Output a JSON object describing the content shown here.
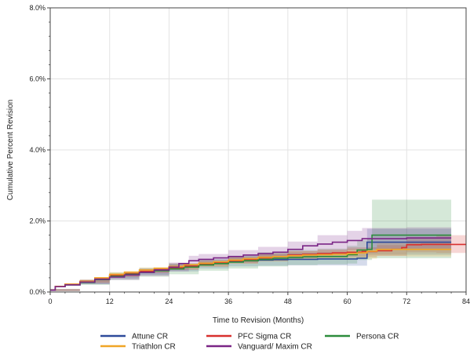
{
  "chart_data": {
    "type": "line",
    "title": "",
    "xlabel": "Time to Revision (Months)",
    "ylabel": "Cumulative Percent Revision",
    "xlim": [
      0,
      84
    ],
    "ylim": [
      0,
      8
    ],
    "x_ticks": [
      0,
      12,
      24,
      36,
      48,
      60,
      72,
      84
    ],
    "x_tick_labels": [
      "0",
      "12",
      "24",
      "36",
      "48",
      "60",
      "72",
      "84"
    ],
    "y_ticks": [
      0,
      2,
      4,
      6,
      8
    ],
    "y_tick_labels": [
      "0.0%",
      "2.0%",
      "4.0%",
      "6.0%",
      "8.0%"
    ],
    "grid": true,
    "legend_position": "bottom",
    "series": [
      {
        "name": "Attune CR",
        "color": "#2e4a9a",
        "points": [
          [
            0,
            0.05
          ],
          [
            1,
            0.15
          ],
          [
            3,
            0.2
          ],
          [
            6,
            0.28
          ],
          [
            9,
            0.36
          ],
          [
            12,
            0.45
          ],
          [
            15,
            0.5
          ],
          [
            18,
            0.56
          ],
          [
            21,
            0.62
          ],
          [
            24,
            0.68
          ],
          [
            27,
            0.73
          ],
          [
            30,
            0.78
          ],
          [
            33,
            0.82
          ],
          [
            36,
            0.86
          ],
          [
            39,
            0.88
          ],
          [
            42,
            0.9
          ],
          [
            45,
            0.91
          ],
          [
            48,
            0.92
          ],
          [
            51,
            0.92
          ],
          [
            54,
            0.93
          ],
          [
            57,
            0.93
          ],
          [
            60,
            0.93
          ],
          [
            62,
            0.95
          ],
          [
            64,
            1.4
          ],
          [
            66,
            1.4
          ],
          [
            69,
            1.4
          ],
          [
            72,
            1.4
          ],
          [
            75,
            1.4
          ],
          [
            78,
            1.4
          ],
          [
            81,
            1.4
          ]
        ],
        "band": [
          [
            0,
            0.03,
            0.08
          ],
          [
            6,
            0.22,
            0.34
          ],
          [
            12,
            0.38,
            0.52
          ],
          [
            18,
            0.48,
            0.64
          ],
          [
            24,
            0.58,
            0.8
          ],
          [
            30,
            0.66,
            0.92
          ],
          [
            36,
            0.72,
            1.02
          ],
          [
            42,
            0.74,
            1.08
          ],
          [
            48,
            0.75,
            1.1
          ],
          [
            54,
            0.75,
            1.12
          ],
          [
            60,
            0.74,
            1.14
          ],
          [
            62,
            0.74,
            1.2
          ],
          [
            64,
            1.05,
            1.78
          ],
          [
            72,
            1.05,
            1.78
          ],
          [
            81,
            1.05,
            1.78
          ]
        ]
      },
      {
        "name": "PFC Sigma CR",
        "color": "#d8302e",
        "points": [
          [
            0,
            0.05
          ],
          [
            1,
            0.15
          ],
          [
            3,
            0.22
          ],
          [
            6,
            0.3
          ],
          [
            9,
            0.38
          ],
          [
            12,
            0.47
          ],
          [
            15,
            0.52
          ],
          [
            18,
            0.58
          ],
          [
            21,
            0.63
          ],
          [
            24,
            0.68
          ],
          [
            27,
            0.73
          ],
          [
            30,
            0.78
          ],
          [
            33,
            0.83
          ],
          [
            36,
            0.88
          ],
          [
            39,
            0.92
          ],
          [
            42,
            0.96
          ],
          [
            45,
            1.0
          ],
          [
            48,
            1.04
          ],
          [
            51,
            1.06
          ],
          [
            54,
            1.08
          ],
          [
            57,
            1.1
          ],
          [
            60,
            1.12
          ],
          [
            63,
            1.14
          ],
          [
            66,
            1.16
          ],
          [
            69,
            1.2
          ],
          [
            71,
            1.25
          ],
          [
            72,
            1.33
          ],
          [
            75,
            1.34
          ],
          [
            78,
            1.34
          ],
          [
            81,
            1.34
          ],
          [
            84,
            1.34
          ]
        ],
        "band": [
          [
            0,
            0.03,
            0.08
          ],
          [
            6,
            0.26,
            0.34
          ],
          [
            12,
            0.42,
            0.52
          ],
          [
            18,
            0.53,
            0.64
          ],
          [
            24,
            0.62,
            0.75
          ],
          [
            30,
            0.71,
            0.86
          ],
          [
            36,
            0.8,
            0.97
          ],
          [
            42,
            0.87,
            1.06
          ],
          [
            48,
            0.94,
            1.15
          ],
          [
            54,
            0.97,
            1.2
          ],
          [
            60,
            0.99,
            1.26
          ],
          [
            66,
            1.01,
            1.32
          ],
          [
            72,
            1.12,
            1.55
          ],
          [
            78,
            1.1,
            1.6
          ],
          [
            84,
            1.08,
            1.62
          ]
        ]
      },
      {
        "name": "Persona CR",
        "color": "#2c8c3c",
        "points": [
          [
            0,
            0.05
          ],
          [
            1,
            0.15
          ],
          [
            3,
            0.2
          ],
          [
            6,
            0.27
          ],
          [
            9,
            0.35
          ],
          [
            12,
            0.44
          ],
          [
            15,
            0.5
          ],
          [
            18,
            0.55
          ],
          [
            21,
            0.6
          ],
          [
            24,
            0.65
          ],
          [
            27,
            0.7
          ],
          [
            30,
            0.76
          ],
          [
            33,
            0.8
          ],
          [
            36,
            0.84
          ],
          [
            39,
            0.88
          ],
          [
            42,
            0.92
          ],
          [
            45,
            0.95
          ],
          [
            48,
            0.97
          ],
          [
            51,
            0.99
          ],
          [
            54,
            1.0
          ],
          [
            57,
            1.0
          ],
          [
            60,
            1.05
          ],
          [
            62,
            1.18
          ],
          [
            64,
            1.2
          ],
          [
            65,
            1.6
          ],
          [
            69,
            1.6
          ],
          [
            72,
            1.6
          ],
          [
            75,
            1.6
          ],
          [
            78,
            1.6
          ],
          [
            81,
            1.6
          ]
        ],
        "band": [
          [
            0,
            0.03,
            0.08
          ],
          [
            6,
            0.2,
            0.34
          ],
          [
            12,
            0.34,
            0.55
          ],
          [
            18,
            0.43,
            0.68
          ],
          [
            24,
            0.5,
            0.8
          ],
          [
            30,
            0.6,
            0.92
          ],
          [
            36,
            0.66,
            1.02
          ],
          [
            42,
            0.72,
            1.12
          ],
          [
            48,
            0.76,
            1.18
          ],
          [
            54,
            0.78,
            1.22
          ],
          [
            60,
            0.8,
            1.3
          ],
          [
            62,
            0.9,
            1.46
          ],
          [
            64,
            0.9,
            1.48
          ],
          [
            65,
            0.95,
            2.6
          ],
          [
            72,
            0.95,
            2.6
          ],
          [
            81,
            0.95,
            2.6
          ]
        ]
      },
      {
        "name": "Triathlon CR",
        "color": "#f0a526",
        "points": [
          [
            0,
            0.05
          ],
          [
            1,
            0.16
          ],
          [
            3,
            0.22
          ],
          [
            6,
            0.3
          ],
          [
            9,
            0.4
          ],
          [
            12,
            0.5
          ],
          [
            15,
            0.56
          ],
          [
            18,
            0.62
          ],
          [
            21,
            0.67
          ],
          [
            24,
            0.72
          ],
          [
            27,
            0.77
          ],
          [
            30,
            0.81
          ],
          [
            33,
            0.85
          ],
          [
            36,
            0.9
          ],
          [
            39,
            0.94
          ],
          [
            42,
            0.98
          ],
          [
            45,
            1.0
          ],
          [
            48,
            1.02
          ],
          [
            51,
            1.04
          ],
          [
            54,
            1.05
          ],
          [
            57,
            1.06
          ],
          [
            60,
            1.08
          ],
          [
            62,
            1.1
          ],
          [
            64,
            1.15
          ],
          [
            66,
            1.2
          ],
          [
            69,
            1.2
          ],
          [
            72,
            1.2
          ],
          [
            75,
            1.2
          ],
          [
            78,
            1.2
          ],
          [
            81,
            1.2
          ]
        ],
        "band": [
          [
            0,
            0.03,
            0.08
          ],
          [
            6,
            0.26,
            0.35
          ],
          [
            12,
            0.44,
            0.56
          ],
          [
            18,
            0.55,
            0.69
          ],
          [
            24,
            0.64,
            0.8
          ],
          [
            30,
            0.72,
            0.9
          ],
          [
            36,
            0.8,
            1.0
          ],
          [
            42,
            0.86,
            1.1
          ],
          [
            48,
            0.9,
            1.15
          ],
          [
            54,
            0.92,
            1.18
          ],
          [
            60,
            0.94,
            1.22
          ],
          [
            66,
            1.02,
            1.38
          ],
          [
            72,
            1.0,
            1.4
          ],
          [
            81,
            0.98,
            1.42
          ]
        ]
      },
      {
        "name": "Vanguard/ Maxim CR",
        "color": "#7a2586",
        "points": [
          [
            0,
            0.05
          ],
          [
            1,
            0.15
          ],
          [
            3,
            0.2
          ],
          [
            6,
            0.28
          ],
          [
            9,
            0.36
          ],
          [
            12,
            0.42
          ],
          [
            15,
            0.48
          ],
          [
            18,
            0.55
          ],
          [
            21,
            0.62
          ],
          [
            24,
            0.7
          ],
          [
            26,
            0.8
          ],
          [
            28,
            0.88
          ],
          [
            30,
            0.92
          ],
          [
            33,
            0.96
          ],
          [
            36,
            1.0
          ],
          [
            39,
            1.04
          ],
          [
            42,
            1.08
          ],
          [
            45,
            1.12
          ],
          [
            48,
            1.2
          ],
          [
            51,
            1.3
          ],
          [
            54,
            1.35
          ],
          [
            57,
            1.4
          ],
          [
            60,
            1.45
          ],
          [
            63,
            1.5
          ],
          [
            66,
            1.5
          ],
          [
            69,
            1.5
          ],
          [
            72,
            1.52
          ],
          [
            75,
            1.52
          ],
          [
            78,
            1.52
          ],
          [
            81,
            1.52
          ]
        ],
        "band": [
          [
            0,
            0.03,
            0.08
          ],
          [
            6,
            0.22,
            0.34
          ],
          [
            12,
            0.34,
            0.5
          ],
          [
            18,
            0.45,
            0.66
          ],
          [
            24,
            0.58,
            0.83
          ],
          [
            28,
            0.74,
            1.02
          ],
          [
            30,
            0.77,
            1.07
          ],
          [
            36,
            0.83,
            1.18
          ],
          [
            42,
            0.9,
            1.27
          ],
          [
            48,
            0.99,
            1.42
          ],
          [
            54,
            1.1,
            1.6
          ],
          [
            60,
            1.17,
            1.72
          ],
          [
            63,
            1.2,
            1.8
          ],
          [
            72,
            1.22,
            1.82
          ],
          [
            81,
            1.22,
            1.82
          ]
        ]
      }
    ]
  }
}
